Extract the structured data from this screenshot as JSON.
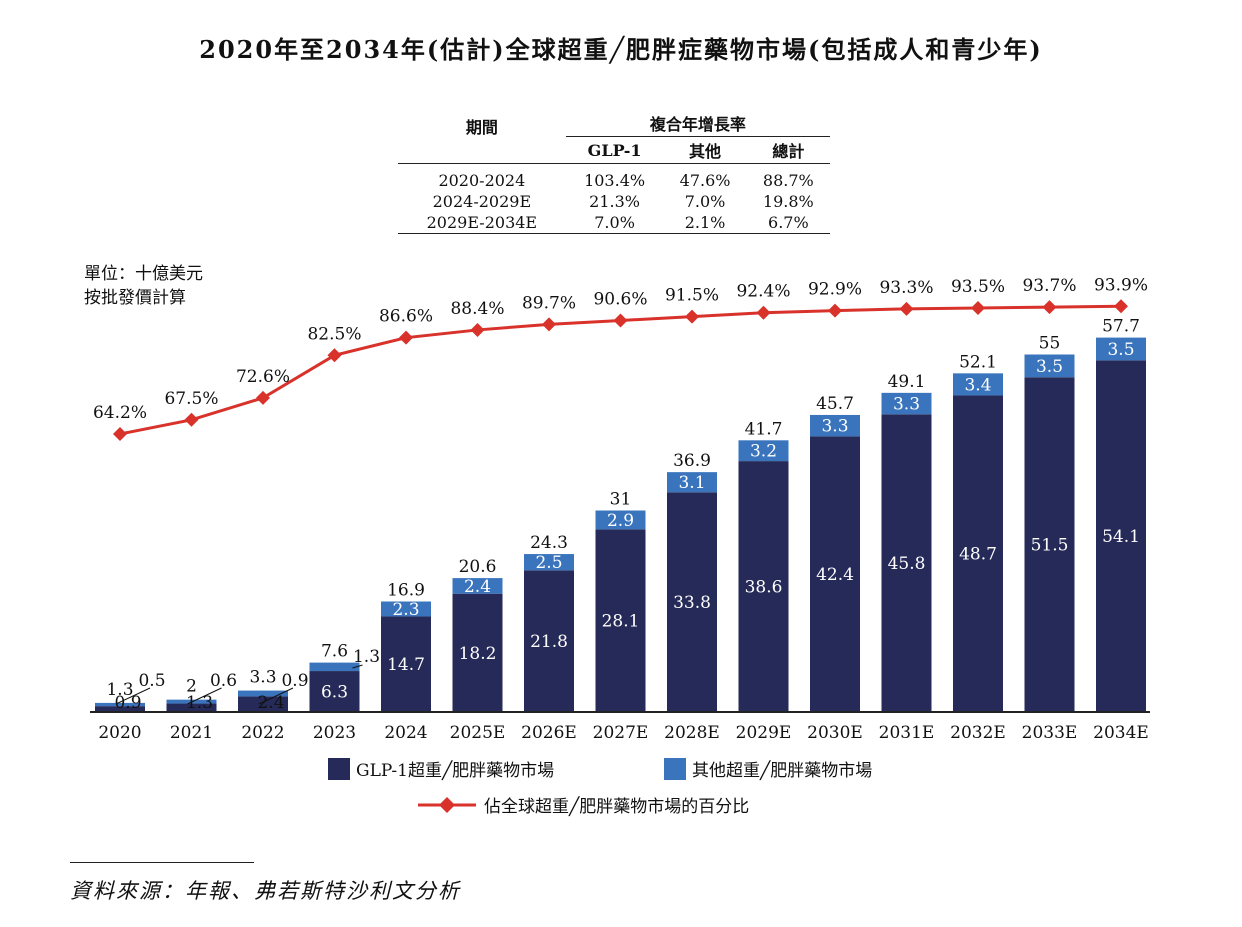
{
  "title": "2020年至2034年(估計)全球超重╱肥胖症藥物市場(包括成人和青少年)",
  "cagr_table": {
    "period_header": "期間",
    "cagr_header": "複合年增長率",
    "columns": [
      "GLP-1",
      "其他",
      "總計"
    ],
    "rows": [
      {
        "period": "2020-2024",
        "values": [
          "103.4%",
          "47.6%",
          "88.7%"
        ]
      },
      {
        "period": "2024-2029E",
        "values": [
          "21.3%",
          "7.0%",
          "19.8%"
        ]
      },
      {
        "period": "2029E-2034E",
        "values": [
          "7.0%",
          "2.1%",
          "6.7%"
        ]
      }
    ]
  },
  "unit_lines": [
    "單位：十億美元",
    "按批發價計算"
  ],
  "source": "資料來源：年報、弗若斯特沙利文分析",
  "colors": {
    "glp1": "#262a58",
    "other": "#3a74bd",
    "line": "#d8322b"
  },
  "chart_data": {
    "type": "bar",
    "stacked": true,
    "categories": [
      "2020",
      "2021",
      "2022",
      "2023",
      "2024",
      "2025E",
      "2026E",
      "2027E",
      "2028E",
      "2029E",
      "2030E",
      "2031E",
      "2032E",
      "2033E",
      "2034E"
    ],
    "series": [
      {
        "name": "GLP-1超重╱肥胖藥物市場",
        "values": [
          0.9,
          1.3,
          2.4,
          6.3,
          14.7,
          18.2,
          21.8,
          28.1,
          33.8,
          38.6,
          42.4,
          45.8,
          48.7,
          51.5,
          54.1
        ]
      },
      {
        "name": "其他超重╱肥胖藥物市場",
        "values": [
          0.5,
          0.6,
          0.9,
          1.3,
          2.3,
          2.4,
          2.5,
          2.9,
          3.1,
          3.2,
          3.3,
          3.3,
          3.4,
          3.5,
          3.5
        ]
      }
    ],
    "totals": [
      1.3,
      2.0,
      3.3,
      7.6,
      16.9,
      20.6,
      24.3,
      31.0,
      36.9,
      41.7,
      45.7,
      49.1,
      52.1,
      55.0,
      57.7
    ],
    "line_series": {
      "name": "佔全球超重╱肥胖藥物市場的百分比",
      "values": [
        64.2,
        67.5,
        72.6,
        82.5,
        86.6,
        88.4,
        89.7,
        90.6,
        91.5,
        92.4,
        92.9,
        93.3,
        93.5,
        93.7,
        93.9
      ]
    },
    "ylim": [
      0,
      60
    ],
    "legend_position": "bottom"
  }
}
